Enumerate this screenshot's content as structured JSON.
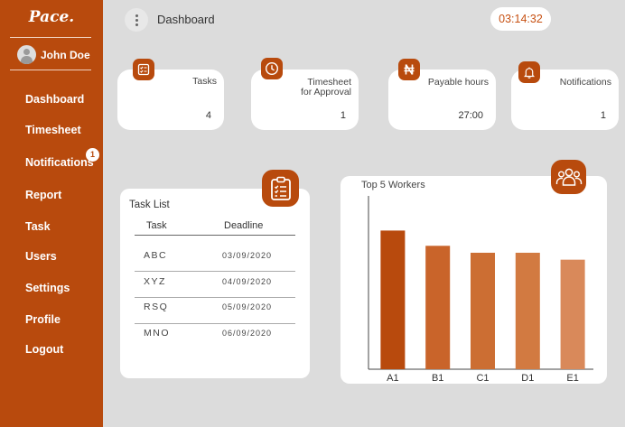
{
  "app": {
    "logo": "Pace."
  },
  "user": {
    "name": "John Doe"
  },
  "sidebar": {
    "items": [
      {
        "label": "Dashboard"
      },
      {
        "label": "Timesheet"
      },
      {
        "label": "Notifications",
        "badge": "1"
      },
      {
        "label": "Report"
      },
      {
        "label": "Task"
      },
      {
        "label": "Users"
      },
      {
        "label": "Settings"
      },
      {
        "label": "Profile"
      },
      {
        "label": "Logout"
      }
    ]
  },
  "header": {
    "title": "Dashboard",
    "clock": "03:14:32"
  },
  "stats": [
    {
      "label": "Tasks",
      "value": "4",
      "icon": "checklist-icon"
    },
    {
      "label_line1": "Timesheet",
      "label_line2": "for Approval",
      "value": "1",
      "icon": "clock-icon"
    },
    {
      "label": "Payable hours",
      "value": "27:00",
      "icon": "naira-icon"
    },
    {
      "label": "Notifications",
      "value": "1",
      "icon": "bell-icon"
    }
  ],
  "task_list": {
    "title": "Task List",
    "columns": [
      "Task",
      "Deadline"
    ],
    "rows": [
      {
        "task": "ABC",
        "deadline": "03/09/2020"
      },
      {
        "task": "XYZ",
        "deadline": "04/09/2020"
      },
      {
        "task": "RSQ",
        "deadline": "05/09/2020"
      },
      {
        "task": "MNO",
        "deadline": "06/09/2020"
      }
    ]
  },
  "colors": {
    "brand": "#b84a0d",
    "background": "#dcdcdc",
    "card": "#ffffff"
  },
  "chart_data": {
    "type": "bar",
    "title": "Top 5 Workers",
    "categories": [
      "A1",
      "B1",
      "C1",
      "D1",
      "E1"
    ],
    "values": [
      100,
      89,
      84,
      84,
      79
    ],
    "colors": [
      "#b84a0d",
      "#c9642a",
      "#cc6e33",
      "#d27a41",
      "#d9895a"
    ],
    "ylim": [
      0,
      125
    ],
    "xlabel": "",
    "ylabel": "",
    "grid": false
  }
}
